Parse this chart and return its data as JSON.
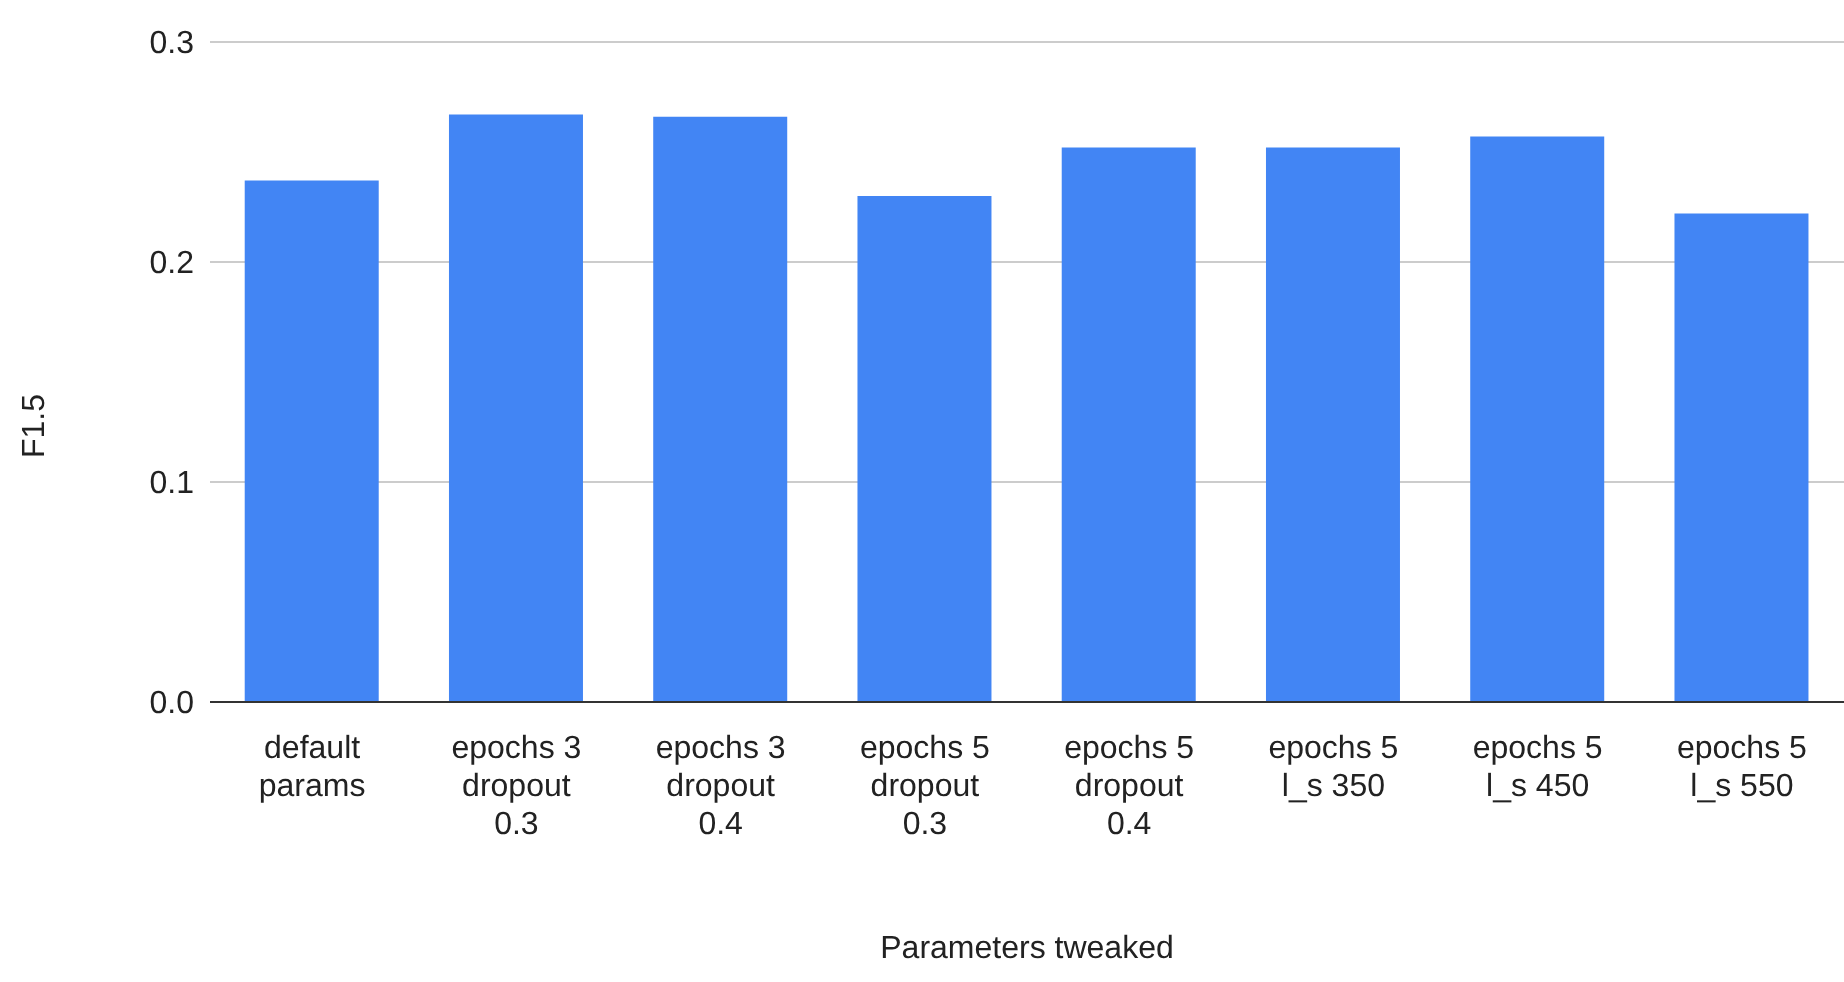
{
  "chart_data": {
    "type": "bar",
    "xlabel": "Parameters tweaked",
    "ylabel": "F1.5",
    "categories": [
      "default params",
      "epochs 3 dropout 0.3",
      "epochs 3 dropout 0.4",
      "epochs 5 dropout 0.3",
      "epochs 5 dropout 0.4",
      "epochs 5 l_s 350",
      "epochs 5 l_s 450",
      "epochs 5 l_s 550"
    ],
    "values": [
      0.237,
      0.267,
      0.266,
      0.23,
      0.252,
      0.252,
      0.257,
      0.222
    ],
    "color": "#4285f4",
    "ylim": [
      0,
      0.3
    ],
    "yticks": [
      {
        "value": 0,
        "label": "0.0"
      },
      {
        "value": 0.1,
        "label": "0.1"
      },
      {
        "value": 0.2,
        "label": "0.2"
      },
      {
        "value": 0.3,
        "label": "0.3"
      }
    ],
    "grid": "y",
    "legend": false
  }
}
